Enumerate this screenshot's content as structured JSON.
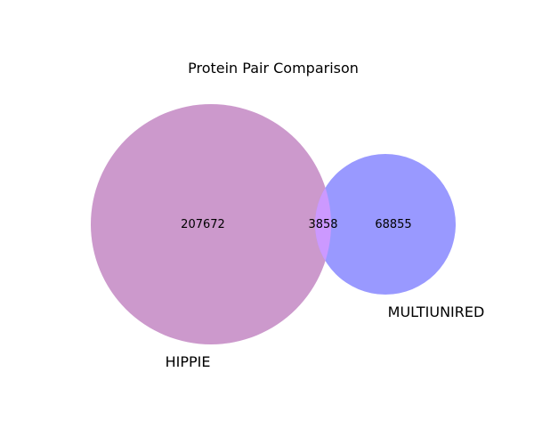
{
  "title": "Protein Pair Comparison",
  "sets": [
    {
      "name": "HIPPIE",
      "only_count": "207672",
      "color": "#cc99cc"
    },
    {
      "name": "MULTIUNIRED",
      "only_count": "68855",
      "color": "#9999ff"
    }
  ],
  "intersection": {
    "count": "3858",
    "color": "#cc99ff"
  },
  "chart_data": {
    "type": "venn",
    "title": "Protein Pair Comparison",
    "sets": [
      "HIPPIE",
      "MULTIUNIRED"
    ],
    "values": {
      "HIPPIE_only": 207672,
      "MULTIUNIRED_only": 68855,
      "HIPPIE_and_MULTIUNIRED": 3858
    }
  }
}
